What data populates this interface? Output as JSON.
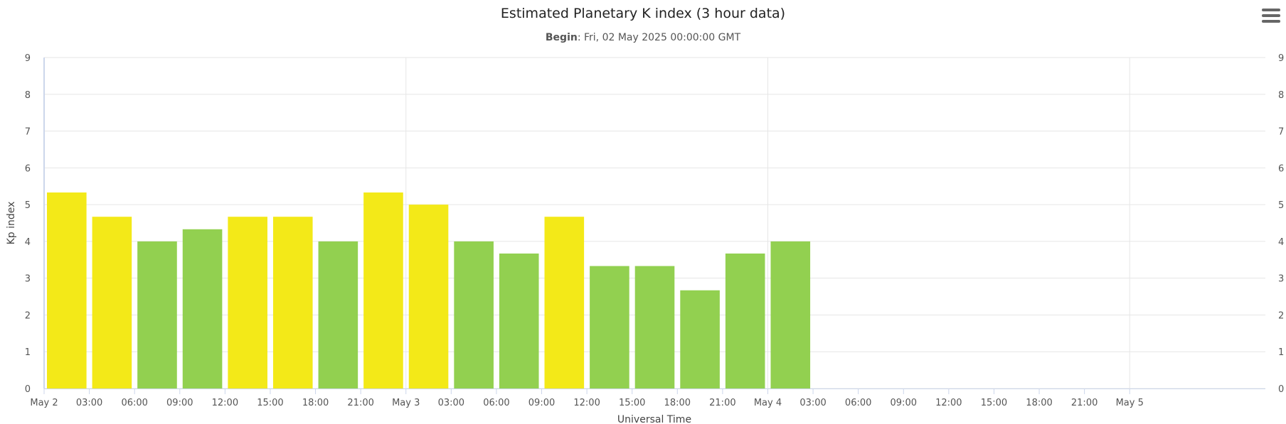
{
  "chart_data": {
    "type": "bar",
    "title": "Estimated Planetary K index (3 hour data)",
    "subtitle": {
      "label": "Begin",
      "text": ": Fri, 02 May 2025 00:00:00 GMT"
    },
    "xlabel": "Universal Time",
    "ylabel": "Kp index",
    "ylim": [
      0,
      9
    ],
    "yticks": [
      "0",
      "1",
      "2",
      "3",
      "4",
      "5",
      "6",
      "7",
      "8",
      "9"
    ],
    "x_range_hours": [
      0,
      81
    ],
    "x_ticks": [
      {
        "h": 0,
        "label": "May 2"
      },
      {
        "h": 3,
        "label": "03:00"
      },
      {
        "h": 6,
        "label": "06:00"
      },
      {
        "h": 9,
        "label": "09:00"
      },
      {
        "h": 12,
        "label": "12:00"
      },
      {
        "h": 15,
        "label": "15:00"
      },
      {
        "h": 18,
        "label": "18:00"
      },
      {
        "h": 21,
        "label": "21:00"
      },
      {
        "h": 24,
        "label": "May 3"
      },
      {
        "h": 27,
        "label": "03:00"
      },
      {
        "h": 30,
        "label": "06:00"
      },
      {
        "h": 33,
        "label": "09:00"
      },
      {
        "h": 36,
        "label": "12:00"
      },
      {
        "h": 39,
        "label": "15:00"
      },
      {
        "h": 42,
        "label": "18:00"
      },
      {
        "h": 45,
        "label": "21:00"
      },
      {
        "h": 48,
        "label": "May 4"
      },
      {
        "h": 51,
        "label": "03:00"
      },
      {
        "h": 54,
        "label": "06:00"
      },
      {
        "h": 57,
        "label": "09:00"
      },
      {
        "h": 60,
        "label": "12:00"
      },
      {
        "h": 63,
        "label": "15:00"
      },
      {
        "h": 66,
        "label": "18:00"
      },
      {
        "h": 69,
        "label": "21:00"
      },
      {
        "h": 72,
        "label": "May 5"
      }
    ],
    "x_major_grid_hours": [
      24,
      48,
      72
    ],
    "grid": true,
    "legend": "none",
    "bars": [
      {
        "start_h": 0,
        "value": 5.33,
        "color": "#f3e918"
      },
      {
        "start_h": 3,
        "value": 4.67,
        "color": "#f3e918"
      },
      {
        "start_h": 6,
        "value": 4.0,
        "color": "#92d050"
      },
      {
        "start_h": 9,
        "value": 4.33,
        "color": "#92d050"
      },
      {
        "start_h": 12,
        "value": 4.67,
        "color": "#f3e918"
      },
      {
        "start_h": 15,
        "value": 4.67,
        "color": "#f3e918"
      },
      {
        "start_h": 18,
        "value": 4.0,
        "color": "#92d050"
      },
      {
        "start_h": 21,
        "value": 5.33,
        "color": "#f3e918"
      },
      {
        "start_h": 24,
        "value": 5.0,
        "color": "#f3e918"
      },
      {
        "start_h": 27,
        "value": 4.0,
        "color": "#92d050"
      },
      {
        "start_h": 30,
        "value": 3.67,
        "color": "#92d050"
      },
      {
        "start_h": 33,
        "value": 4.67,
        "color": "#f3e918"
      },
      {
        "start_h": 36,
        "value": 3.33,
        "color": "#92d050"
      },
      {
        "start_h": 39,
        "value": 3.33,
        "color": "#92d050"
      },
      {
        "start_h": 42,
        "value": 2.67,
        "color": "#92d050"
      },
      {
        "start_h": 45,
        "value": 3.67,
        "color": "#92d050"
      },
      {
        "start_h": 48,
        "value": 4.0,
        "color": "#92d050"
      }
    ],
    "colors": {
      "grid": "#e6e6e6",
      "axis": "#ccd6eb"
    }
  },
  "menu": {
    "icon": "hamburger-menu-icon"
  }
}
